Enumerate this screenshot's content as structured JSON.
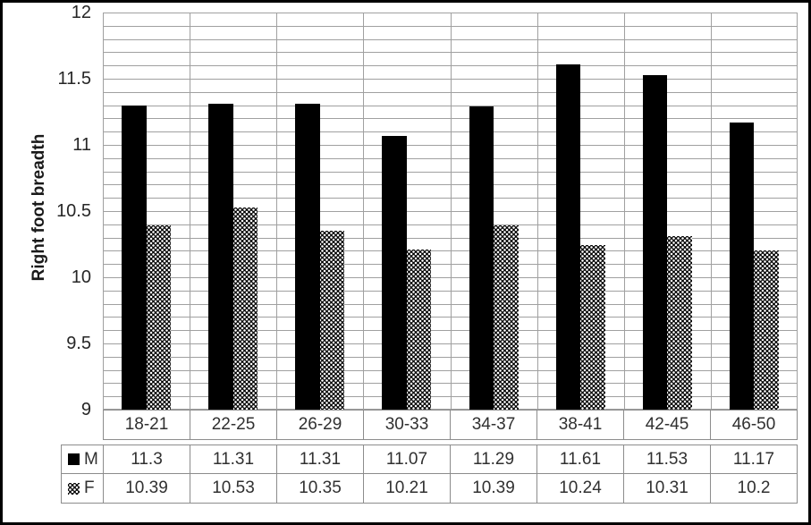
{
  "chart_data": {
    "type": "bar",
    "title": "",
    "ylabel": "Right foot breadth",
    "xlabel": "",
    "categories": [
      "18-21",
      "22-25",
      "26-29",
      "30-33",
      "34-37",
      "38-41",
      "42-45",
      "46-50"
    ],
    "series": [
      {
        "name": "M",
        "pattern": "solid-black",
        "values": [
          11.3,
          11.31,
          11.31,
          11.07,
          11.29,
          11.61,
          11.53,
          11.17
        ]
      },
      {
        "name": "F",
        "pattern": "checker-dots",
        "values": [
          10.39,
          10.53,
          10.35,
          10.21,
          10.39,
          10.24,
          10.31,
          10.2
        ]
      }
    ],
    "ylim": [
      9,
      12
    ],
    "ytick_step": 0.5,
    "minor_gridline_step": 0.1,
    "grid": true,
    "legend_position": "data-table-left",
    "data_table_shown": true
  },
  "colors": {
    "bar_fill": "#000000",
    "gridline": "#a0a0a0",
    "table_border": "#8c8c8c",
    "text": "#303030",
    "frame": "#000000",
    "background": "#ffffff"
  }
}
